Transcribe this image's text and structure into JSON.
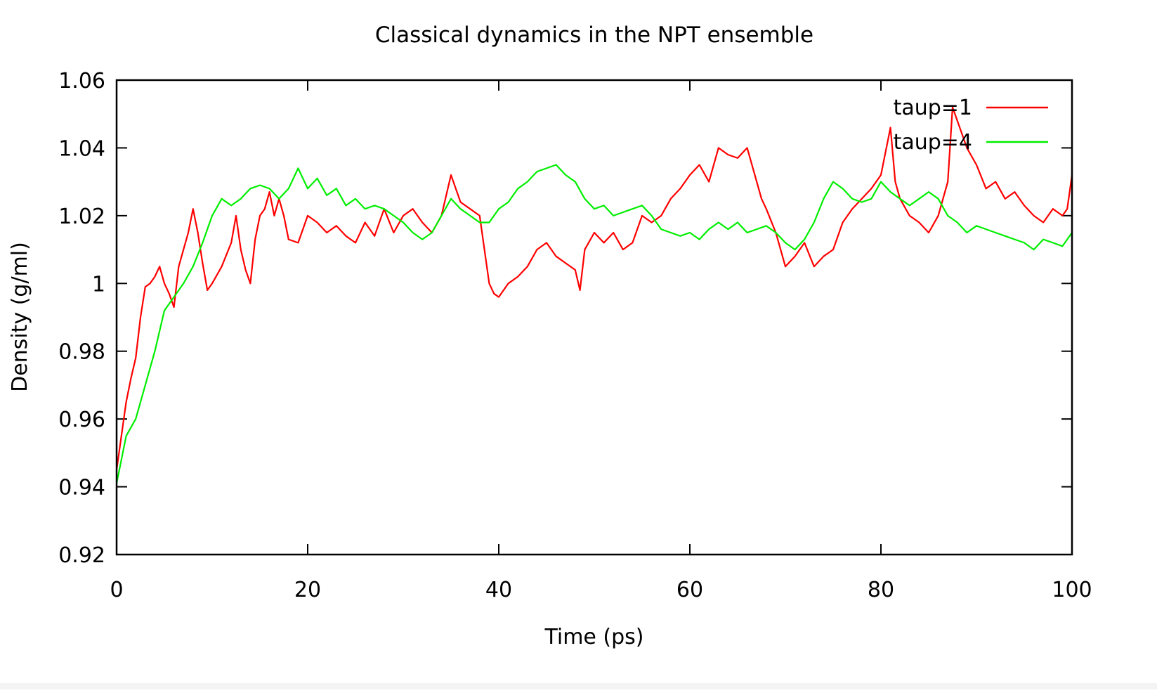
{
  "chart_data": {
    "type": "line",
    "title": "Classical dynamics in the NPT ensemble",
    "xlabel": "Time (ps)",
    "ylabel": "Density (g/ml)",
    "xlim": [
      0,
      100
    ],
    "ylim": [
      0.92,
      1.06
    ],
    "x_ticks": [
      0,
      20,
      40,
      60,
      80,
      100
    ],
    "y_ticks": [
      0.92,
      0.94,
      0.96,
      0.98,
      1,
      1.02,
      1.04,
      1.06
    ],
    "x_tick_labels": [
      "0",
      "20",
      "40",
      "60",
      "80",
      "100"
    ],
    "y_tick_labels": [
      "0.92",
      "0.94",
      "0.96",
      "0.98",
      "1",
      "1.02",
      "1.04",
      "1.06"
    ],
    "grid": false,
    "legend_position": "top-right",
    "series": [
      {
        "name": "taup=1",
        "color": "#ff0000",
        "x": [
          0,
          0.5,
          1,
          1.5,
          2,
          2.5,
          3,
          3.5,
          4,
          4.5,
          5,
          5.5,
          6,
          6.5,
          7,
          7.5,
          8,
          8.5,
          9,
          9.5,
          10,
          11,
          12,
          12.5,
          13,
          13.5,
          14,
          14.5,
          15,
          15.5,
          16,
          16.5,
          17,
          17.5,
          18,
          19,
          20,
          21,
          22,
          23,
          24,
          25,
          26,
          27,
          28,
          29,
          30,
          31,
          32,
          33,
          34,
          35,
          36,
          37,
          38,
          38.5,
          39,
          39.5,
          40,
          41,
          42,
          43,
          44,
          45,
          46,
          47,
          48,
          48.5,
          49,
          50,
          51,
          52,
          53,
          54,
          55,
          56,
          57,
          58,
          59,
          60,
          61,
          62,
          63,
          64,
          65,
          66,
          67,
          67.5,
          68,
          69,
          70,
          71,
          72,
          73,
          74,
          75,
          76,
          77,
          78,
          79,
          80,
          81,
          81.5,
          82,
          83,
          84,
          85,
          86,
          87,
          87.5,
          88,
          89,
          90,
          91,
          92,
          93,
          94,
          95,
          96,
          97,
          98,
          99,
          99.5,
          100
        ],
        "y": [
          0.945,
          0.955,
          0.965,
          0.972,
          0.978,
          0.99,
          0.999,
          1.0,
          1.002,
          1.005,
          1.0,
          0.997,
          0.993,
          1.005,
          1.01,
          1.015,
          1.022,
          1.015,
          1.006,
          0.998,
          1.0,
          1.005,
          1.012,
          1.02,
          1.01,
          1.004,
          1.0,
          1.013,
          1.02,
          1.022,
          1.027,
          1.02,
          1.025,
          1.02,
          1.013,
          1.012,
          1.02,
          1.018,
          1.015,
          1.017,
          1.014,
          1.012,
          1.018,
          1.014,
          1.022,
          1.015,
          1.02,
          1.022,
          1.018,
          1.015,
          1.02,
          1.032,
          1.024,
          1.022,
          1.02,
          1.01,
          1.0,
          0.997,
          0.996,
          1.0,
          1.002,
          1.005,
          1.01,
          1.012,
          1.008,
          1.006,
          1.004,
          0.998,
          1.01,
          1.015,
          1.012,
          1.015,
          1.01,
          1.012,
          1.02,
          1.018,
          1.02,
          1.025,
          1.028,
          1.032,
          1.035,
          1.03,
          1.04,
          1.038,
          1.037,
          1.04,
          1.03,
          1.025,
          1.022,
          1.015,
          1.005,
          1.008,
          1.012,
          1.005,
          1.008,
          1.01,
          1.018,
          1.022,
          1.025,
          1.028,
          1.032,
          1.046,
          1.03,
          1.025,
          1.02,
          1.018,
          1.015,
          1.02,
          1.03,
          1.052,
          1.048,
          1.04,
          1.035,
          1.028,
          1.03,
          1.025,
          1.027,
          1.023,
          1.02,
          1.018,
          1.022,
          1.02,
          1.022,
          1.032
        ]
      },
      {
        "name": "taup=4",
        "color": "#00ee00",
        "x": [
          0,
          1,
          2,
          3,
          4,
          5,
          6,
          7,
          8,
          9,
          10,
          11,
          12,
          13,
          14,
          15,
          16,
          17,
          18,
          19,
          20,
          21,
          22,
          23,
          24,
          25,
          26,
          27,
          28,
          29,
          30,
          31,
          32,
          33,
          34,
          35,
          36,
          37,
          38,
          39,
          40,
          41,
          42,
          43,
          44,
          45,
          46,
          47,
          48,
          49,
          50,
          51,
          52,
          53,
          54,
          55,
          56,
          57,
          58,
          59,
          60,
          61,
          62,
          63,
          64,
          65,
          66,
          67,
          68,
          69,
          70,
          71,
          72,
          73,
          74,
          75,
          76,
          77,
          78,
          79,
          80,
          81,
          82,
          83,
          84,
          85,
          86,
          87,
          88,
          89,
          90,
          91,
          92,
          93,
          94,
          95,
          96,
          97,
          98,
          99,
          100
        ],
        "y": [
          0.941,
          0.955,
          0.96,
          0.97,
          0.98,
          0.992,
          0.996,
          1.0,
          1.005,
          1.012,
          1.02,
          1.025,
          1.023,
          1.025,
          1.028,
          1.029,
          1.028,
          1.025,
          1.028,
          1.034,
          1.028,
          1.031,
          1.026,
          1.028,
          1.023,
          1.025,
          1.022,
          1.023,
          1.022,
          1.02,
          1.018,
          1.015,
          1.013,
          1.015,
          1.02,
          1.025,
          1.022,
          1.02,
          1.018,
          1.018,
          1.022,
          1.024,
          1.028,
          1.03,
          1.033,
          1.034,
          1.035,
          1.032,
          1.03,
          1.025,
          1.022,
          1.023,
          1.02,
          1.021,
          1.022,
          1.023,
          1.02,
          1.016,
          1.015,
          1.014,
          1.015,
          1.013,
          1.016,
          1.018,
          1.016,
          1.018,
          1.015,
          1.016,
          1.017,
          1.015,
          1.012,
          1.01,
          1.013,
          1.018,
          1.025,
          1.03,
          1.028,
          1.025,
          1.024,
          1.025,
          1.03,
          1.027,
          1.025,
          1.023,
          1.025,
          1.027,
          1.025,
          1.02,
          1.018,
          1.015,
          1.017,
          1.016,
          1.015,
          1.014,
          1.013,
          1.012,
          1.01,
          1.013,
          1.012,
          1.011,
          1.015
        ]
      }
    ]
  }
}
